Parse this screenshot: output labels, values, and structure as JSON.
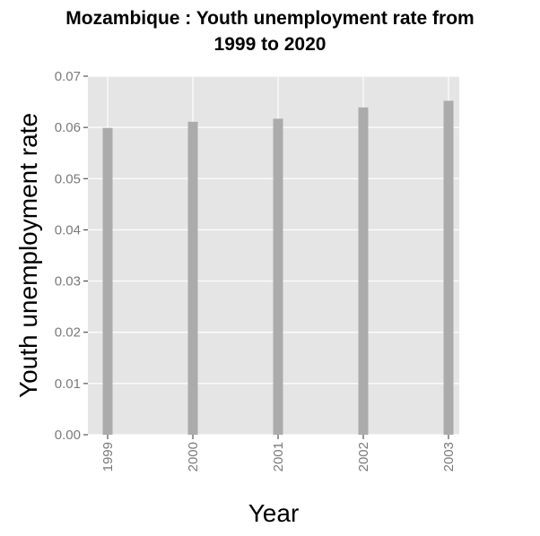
{
  "chart_data": {
    "type": "bar",
    "title_lines": [
      "Mozambique : Youth unemployment rate from",
      "1999 to 2020"
    ],
    "xlabel": "Year",
    "ylabel": "Youth unemployment rate",
    "categories": [
      "1999",
      "2000",
      "2001",
      "2002",
      "2003"
    ],
    "values": [
      0.0599,
      0.0611,
      0.0617,
      0.0639,
      0.0652
    ],
    "ylim": [
      0,
      0.07
    ],
    "yticks": [
      "0.00",
      "0.01",
      "0.02",
      "0.03",
      "0.04",
      "0.05",
      "0.06",
      "0.07"
    ],
    "grid": true,
    "colors": {
      "panel": "#e5e5e5",
      "grid": "#ffffff",
      "bar": "#ababab",
      "tick": "#7a7a7a"
    }
  }
}
